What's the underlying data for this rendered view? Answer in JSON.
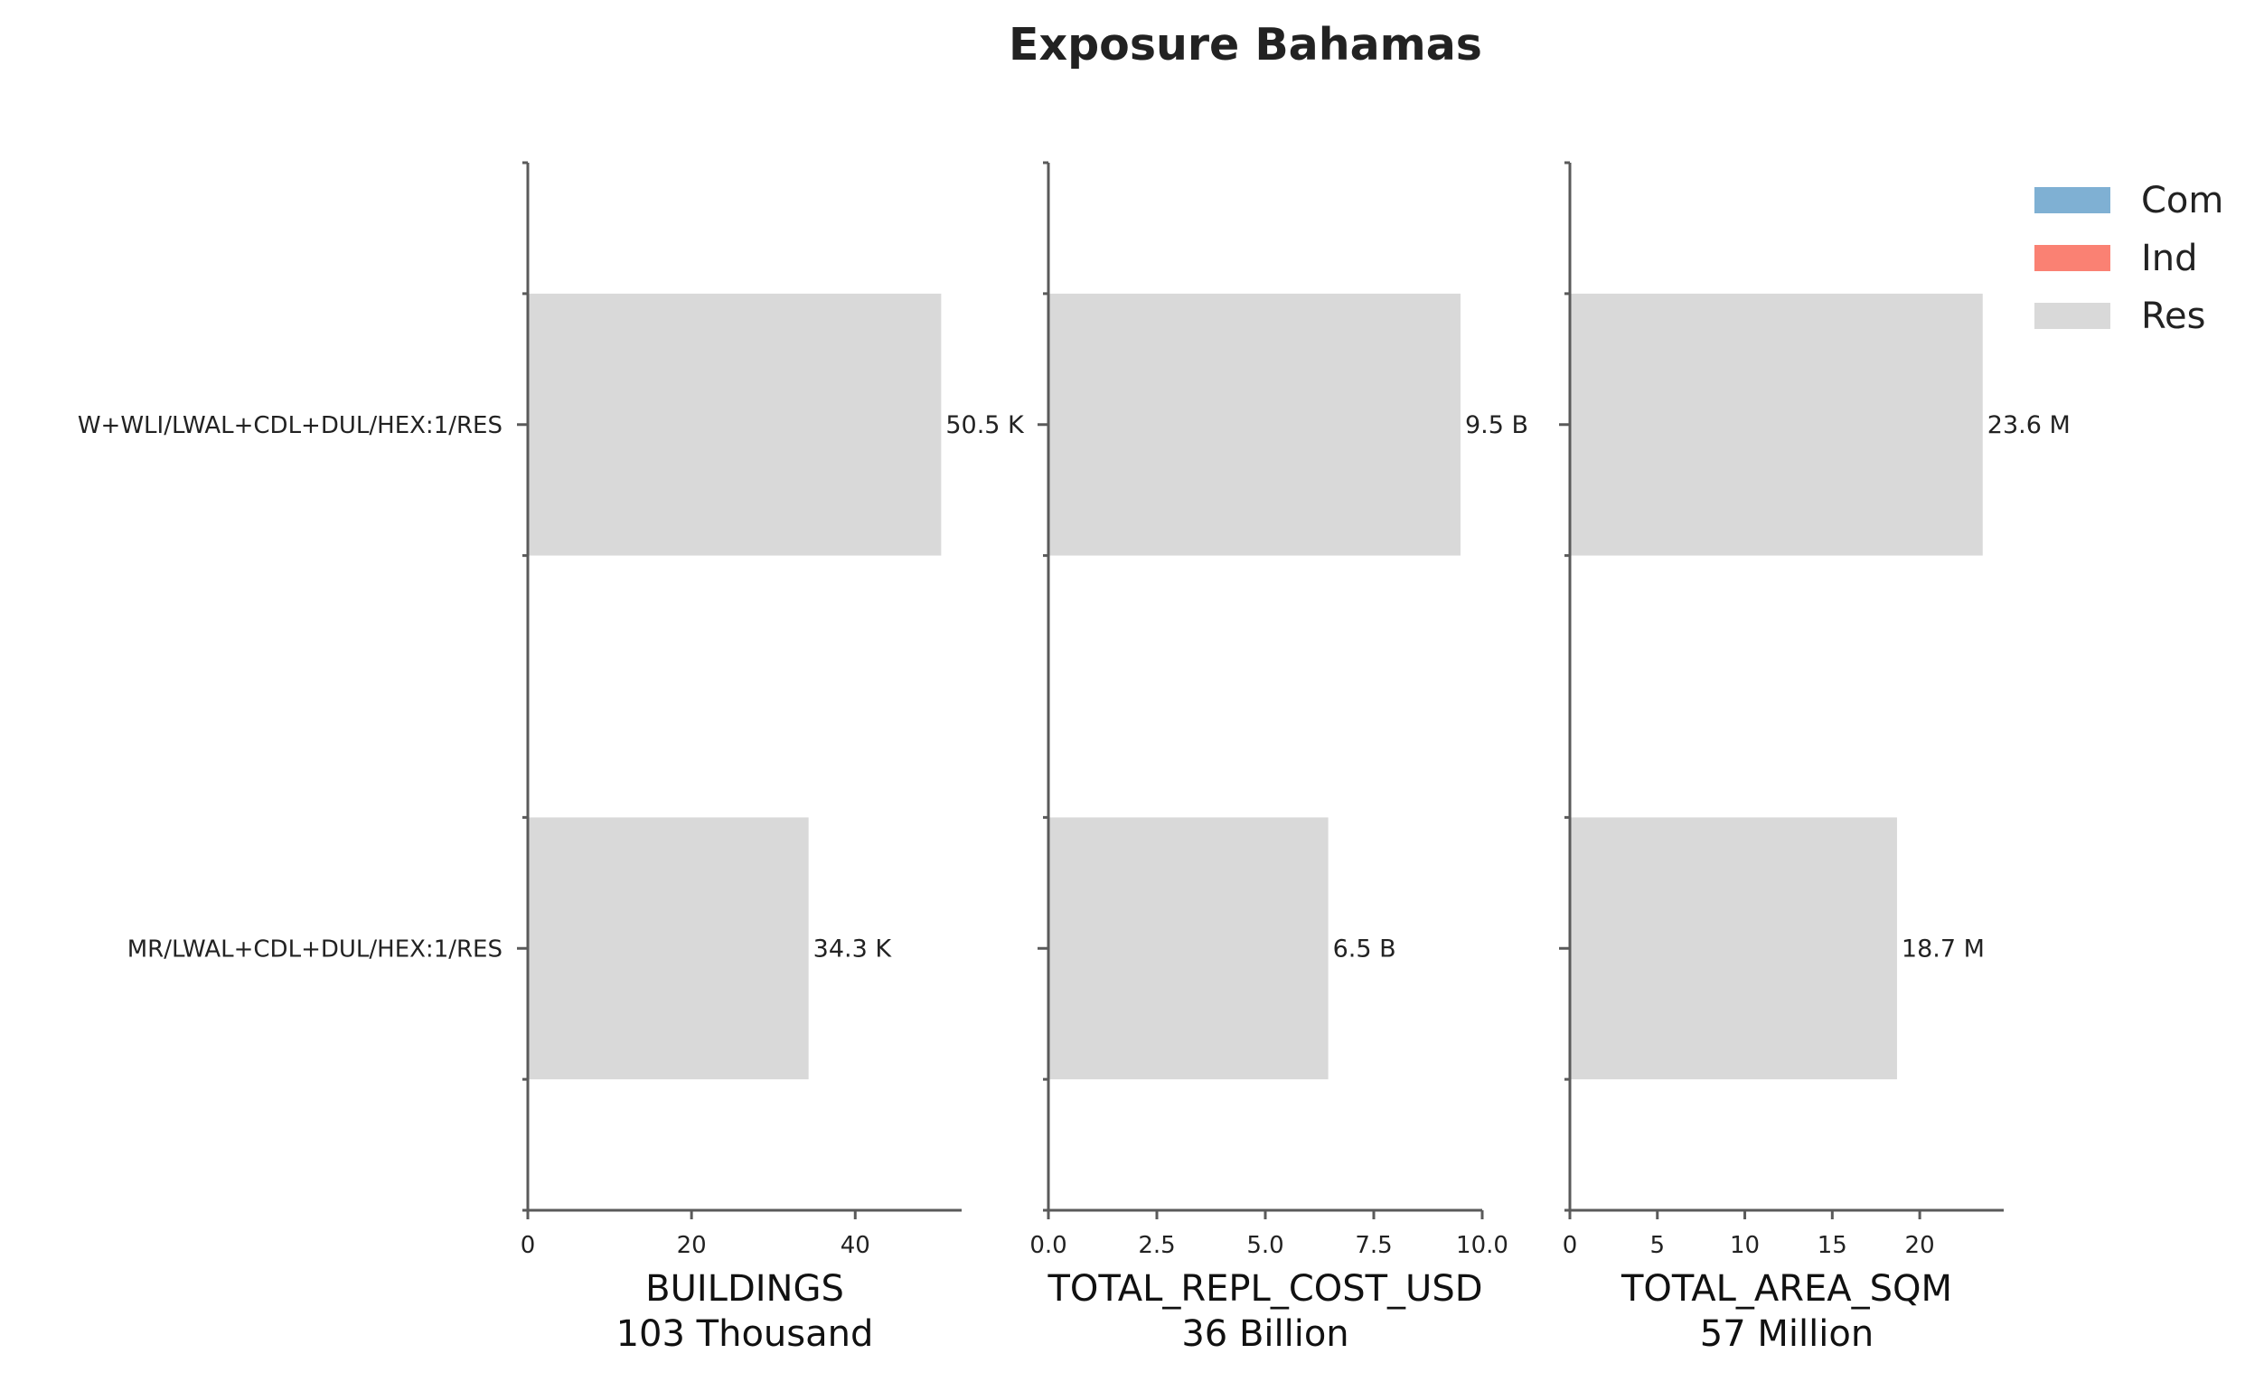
{
  "chart_data": {
    "type": "bar",
    "orientation": "horizontal",
    "stacked": true,
    "title": "Exposure Bahamas",
    "categories": [
      "W+WLI/LWAL+CDL+DUL/HEX:1/RES",
      "MR/LWAL+CDL+DUL/HEX:1/RES"
    ],
    "legend": {
      "placement": "top-right",
      "entries": [
        {
          "name": "Com",
          "color": "#7fb0d3"
        },
        {
          "name": "Ind",
          "color": "#fa8173"
        },
        {
          "name": "Res",
          "color": "#d9d9d9"
        }
      ]
    },
    "panels": [
      {
        "xlabel": "BUILDINGS",
        "total": "103 Thousand",
        "xlim": [
          0,
          53
        ],
        "ticks": [
          0,
          20,
          40
        ],
        "tick_labels": [
          "0",
          "20",
          "40"
        ],
        "series": [
          {
            "name": "Res",
            "values": [
              50.5,
              34.3
            ]
          }
        ],
        "data_labels": [
          "50.5 K",
          "34.3 K"
        ]
      },
      {
        "xlabel": "TOTAL_REPL_COST_USD",
        "total": "36 Billion",
        "xlim": [
          0,
          10
        ],
        "ticks": [
          0,
          2.5,
          5,
          7.5,
          10
        ],
        "tick_labels": [
          "0.0",
          "2.5",
          "5.0",
          "7.5",
          "10.0"
        ],
        "series": [
          {
            "name": "Res",
            "values": [
              9.5,
              6.45
            ]
          }
        ],
        "data_labels": [
          "9.5 B",
          "6.5 B"
        ]
      },
      {
        "xlabel": "TOTAL_AREA_SQM",
        "total": "57 Million",
        "xlim": [
          0,
          24.8
        ],
        "ticks": [
          0,
          5,
          10,
          15,
          20
        ],
        "tick_labels": [
          "0",
          "5",
          "10",
          "15",
          "20"
        ],
        "series": [
          {
            "name": "Res",
            "values": [
              23.6,
              18.7
            ]
          }
        ],
        "data_labels": [
          "23.6 M",
          "18.7 M"
        ]
      }
    ]
  }
}
